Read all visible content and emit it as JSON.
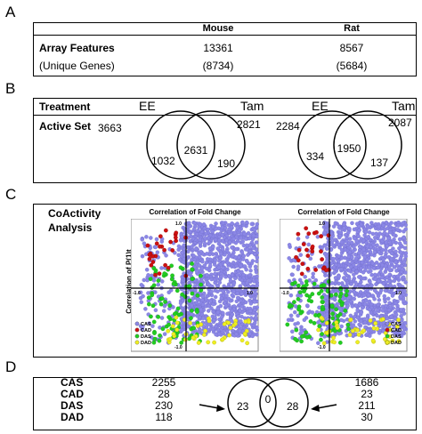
{
  "panels": {
    "a": "A",
    "b": "B",
    "c": "C",
    "d": "D"
  },
  "panel_a": {
    "col_mouse": "Mouse",
    "col_rat": "Rat",
    "row1_label": "Array Features",
    "row1_mouse": "13361",
    "row1_rat": "8567",
    "row2_label": "(Unique Genes)",
    "row2_mouse": "(8734)",
    "row2_rat": "(5684)"
  },
  "panel_b": {
    "treatment_label": "Treatment",
    "active_label": "Active Set",
    "mouse": {
      "ee": "EE",
      "tam": "Tam",
      "ee_total": "3663",
      "tam_total": "2821",
      "ee_only": "1032",
      "overlap": "2631",
      "tam_only": "190"
    },
    "rat": {
      "ee": "EE",
      "tam": "Tam",
      "ee_total": "2284",
      "tam_total": "2087",
      "ee_only": "334",
      "overlap": "1950",
      "tam_only": "137"
    }
  },
  "panel_c": {
    "title_line1": "CoActivity",
    "title_line2": "Analysis",
    "plot_title": "Correlation of Fold Change",
    "ylabel": "Correlation of P(1)t",
    "tick_x_left": "-1.0",
    "tick_x_right": "1.0",
    "tick_y_top": "1.0",
    "tick_y_bottom": "-1.0",
    "legend": [
      "CAS",
      "CAD",
      "DAS",
      "DAD"
    ],
    "colors": {
      "CAS": "#8b87e6",
      "CAD": "#cc1111",
      "DAS": "#22cc22",
      "DAD": "#eeee22"
    }
  },
  "panel_d": {
    "rows": [
      {
        "label": "CAS",
        "mouse": "2255",
        "rat": "1686"
      },
      {
        "label": "CAD",
        "mouse": "28",
        "rat": "23"
      },
      {
        "label": "DAS",
        "mouse": "230",
        "rat": "211"
      },
      {
        "label": "DAD",
        "mouse": "118",
        "rat": "30"
      }
    ],
    "venn": {
      "left": "23",
      "overlap": "0",
      "right": "28"
    }
  }
}
